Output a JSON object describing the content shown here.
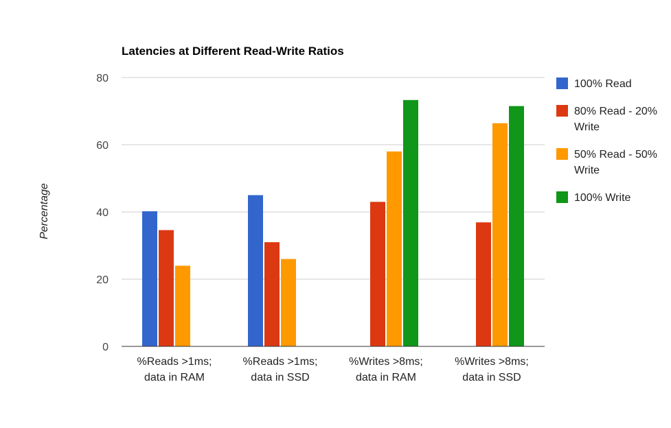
{
  "chart_data": {
    "type": "bar",
    "title": "Latencies at Different Read-Write Ratios",
    "xlabel": "",
    "ylabel": "Percentage",
    "ylim": [
      0,
      80
    ],
    "yticks": [
      0,
      20,
      40,
      60,
      80
    ],
    "grid": true,
    "legend_position": "right",
    "categories": [
      [
        "%Reads >1ms;",
        "data in RAM"
      ],
      [
        "%Reads >1ms;",
        "data in SSD"
      ],
      [
        "%Writes >8ms;",
        "data in RAM"
      ],
      [
        "%Writes >8ms;",
        "data in SSD"
      ]
    ],
    "series": [
      {
        "name": "100% Read",
        "legend_lines": [
          "100% Read"
        ],
        "color": "#3366cc",
        "values": [
          40.2,
          45,
          null,
          null
        ]
      },
      {
        "name": "80% Read - 20% Write",
        "legend_lines": [
          "80% Read - 20%",
          "Write"
        ],
        "color": "#dc3912",
        "values": [
          34.6,
          31,
          43,
          36.9
        ]
      },
      {
        "name": "50% Read - 50% Write",
        "legend_lines": [
          "50% Read - 50%",
          "Write"
        ],
        "color": "#ff9900",
        "values": [
          24,
          26,
          58,
          66.4
        ]
      },
      {
        "name": "100% Write",
        "legend_lines": [
          "100% Write"
        ],
        "color": "#109618",
        "values": [
          null,
          null,
          73.3,
          71.5
        ]
      }
    ]
  }
}
